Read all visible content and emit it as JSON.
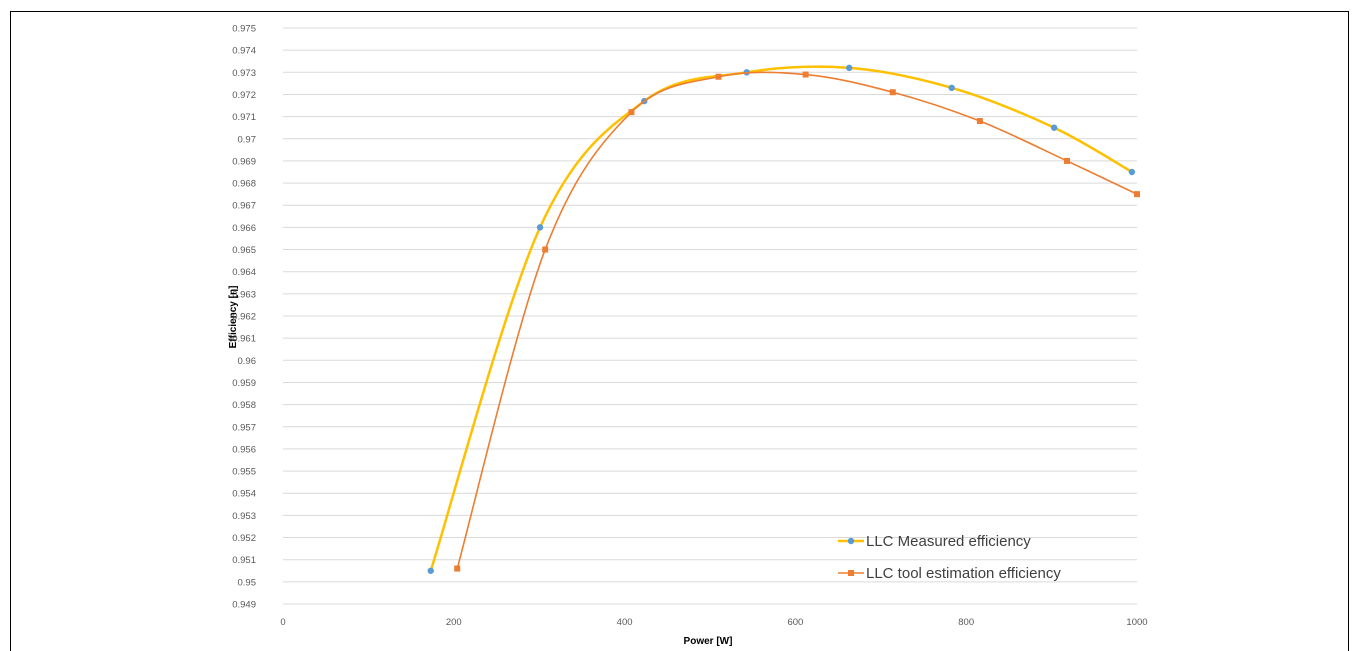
{
  "chart_data": {
    "type": "line",
    "title": "",
    "xlabel": "Power [W]",
    "ylabel": "Efficiency [η]",
    "xlim": [
      0,
      1000
    ],
    "ylim": [
      0.949,
      0.975
    ],
    "x_ticks": [
      "0",
      "200",
      "400",
      "600",
      "800",
      "1000"
    ],
    "y_ticks": [
      "0.949",
      "0.95",
      "0.951",
      "0.952",
      "0.953",
      "0.954",
      "0.955",
      "0.956",
      "0.957",
      "0.958",
      "0.959",
      "0.96",
      "0.961",
      "0.962",
      "0.963",
      "0.964",
      "0.965",
      "0.966",
      "0.967",
      "0.968",
      "0.969",
      "0.97",
      "0.971",
      "0.972",
      "0.973",
      "0.974",
      "0.975"
    ],
    "grid": true,
    "smooth": true,
    "legend_position": "bottom-right",
    "series": [
      {
        "name": "LLC Measured efficiency",
        "line_color": "#FFC000",
        "marker_color": "#5B9BD5",
        "marker": "circle",
        "x": [
          173,
          301,
          423,
          543,
          663,
          783,
          903,
          994
        ],
        "y": [
          0.9505,
          0.966,
          0.9717,
          0.973,
          0.9732,
          0.9723,
          0.9705,
          0.9685
        ]
      },
      {
        "name": "LLC tool estimation efficiency",
        "line_color": "#ED7D31",
        "marker_color": "#ED7D31",
        "marker": "square",
        "x": [
          204,
          307,
          408,
          510,
          612,
          714,
          816,
          918,
          1000
        ],
        "y": [
          0.9506,
          0.965,
          0.9712,
          0.9728,
          0.9729,
          0.9721,
          0.9708,
          0.969,
          0.9675
        ]
      }
    ]
  }
}
